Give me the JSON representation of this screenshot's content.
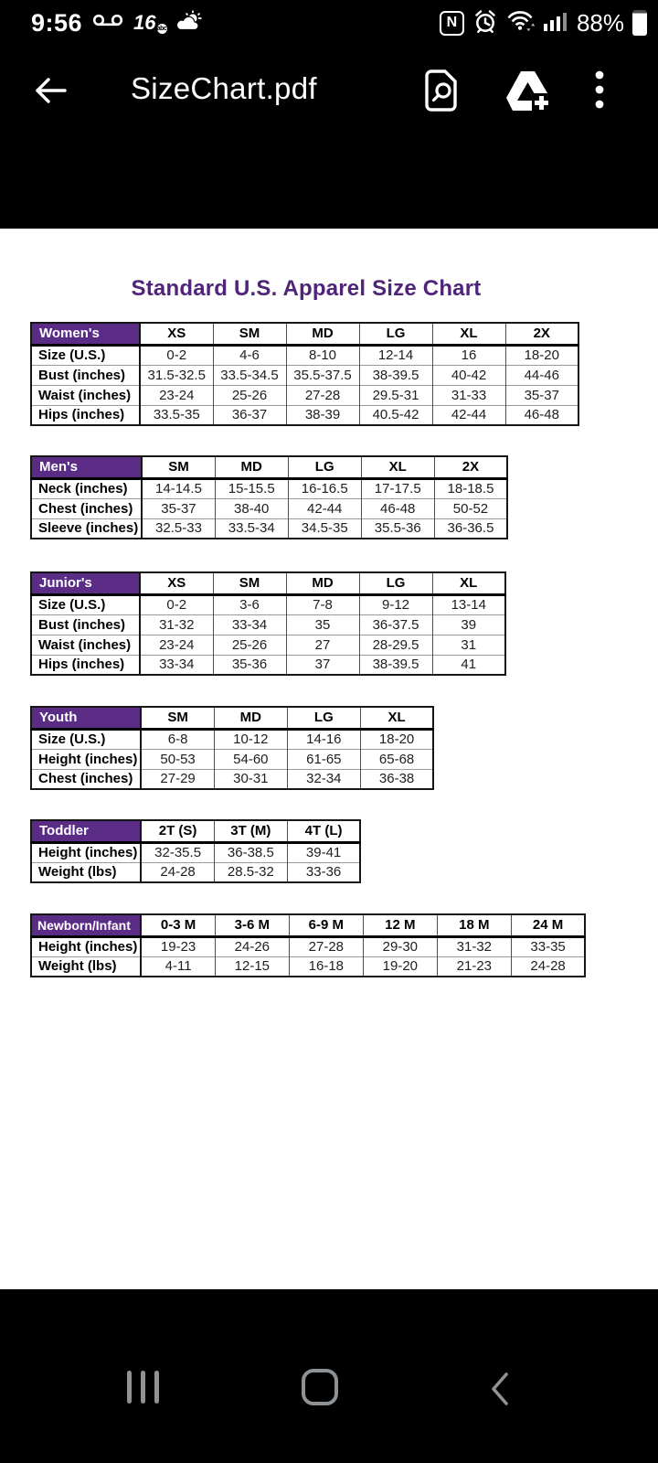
{
  "status_bar": {
    "time": "9:56",
    "battery_percent": "88%",
    "tv_badge": "16",
    "tv_badge_sub": "abc",
    "icons_left": [
      "voicemail-icon",
      "tv-16-abc-icon",
      "weather-sun-cloud-icon"
    ],
    "icons_right": [
      "nfc-icon",
      "alarm-icon",
      "wifi-icon",
      "signal-icon",
      "battery-icon"
    ],
    "nfc_letter": "N"
  },
  "app_bar": {
    "title": "SizeChart.pdf",
    "icons": [
      "back-arrow-icon",
      "find-in-document-icon",
      "add-to-drive-icon",
      "overflow-menu-icon"
    ]
  },
  "document": {
    "title": "Standard U.S. Apparel Size Chart",
    "colors": {
      "title": "#4F2479",
      "header_bg": "#5B2C86",
      "page_bg": "#FFFFFF"
    },
    "tables": [
      {
        "id": "women",
        "name": "Women's",
        "columns": [
          "XS",
          "SM",
          "MD",
          "LG",
          "XL",
          "2X"
        ],
        "rows": [
          {
            "label": "Size (U.S.)",
            "values": [
              "0-2",
              "4-6",
              "8-10",
              "12-14",
              "16",
              "18-20"
            ]
          },
          {
            "label": "Bust (inches)",
            "values": [
              "31.5-32.5",
              "33.5-34.5",
              "35.5-37.5",
              "38-39.5",
              "40-42",
              "44-46"
            ]
          },
          {
            "label": "Waist (inches)",
            "values": [
              "23-24",
              "25-26",
              "27-28",
              "29.5-31",
              "31-33",
              "35-37"
            ]
          },
          {
            "label": "Hips (inches)",
            "values": [
              "33.5-35",
              "36-37",
              "38-39",
              "40.5-42",
              "42-44",
              "46-48"
            ]
          }
        ]
      },
      {
        "id": "men",
        "name": "Men's",
        "columns": [
          "SM",
          "MD",
          "LG",
          "XL",
          "2X"
        ],
        "rows": [
          {
            "label": "Neck (inches)",
            "values": [
              "14-14.5",
              "15-15.5",
              "16-16.5",
              "17-17.5",
              "18-18.5"
            ]
          },
          {
            "label": "Chest (inches)",
            "values": [
              "35-37",
              "38-40",
              "42-44",
              "46-48",
              "50-52"
            ]
          },
          {
            "label": "Sleeve (inches)",
            "values": [
              "32.5-33",
              "33.5-34",
              "34.5-35",
              "35.5-36",
              "36-36.5"
            ]
          }
        ]
      },
      {
        "id": "junior",
        "name": "Junior's",
        "columns": [
          "XS",
          "SM",
          "MD",
          "LG",
          "XL"
        ],
        "rows": [
          {
            "label": "Size (U.S.)",
            "values": [
              "0-2",
              "3-6",
              "7-8",
              "9-12",
              "13-14"
            ]
          },
          {
            "label": "Bust (inches)",
            "values": [
              "31-32",
              "33-34",
              "35",
              "36-37.5",
              "39"
            ]
          },
          {
            "label": "Waist (inches)",
            "values": [
              "23-24",
              "25-26",
              "27",
              "28-29.5",
              "31"
            ]
          },
          {
            "label": "Hips (inches)",
            "values": [
              "33-34",
              "35-36",
              "37",
              "38-39.5",
              "41"
            ]
          }
        ]
      },
      {
        "id": "youth",
        "name": "Youth",
        "columns": [
          "SM",
          "MD",
          "LG",
          "XL"
        ],
        "rows": [
          {
            "label": "Size (U.S.)",
            "values": [
              "6-8",
              "10-12",
              "14-16",
              "18-20"
            ]
          },
          {
            "label": "Height (inches)",
            "values": [
              "50-53",
              "54-60",
              "61-65",
              "65-68"
            ]
          },
          {
            "label": "Chest (inches)",
            "values": [
              "27-29",
              "30-31",
              "32-34",
              "36-38"
            ]
          }
        ]
      },
      {
        "id": "toddler",
        "name": "Toddler",
        "columns": [
          "2T (S)",
          "3T (M)",
          "4T (L)"
        ],
        "rows": [
          {
            "label": "Height (inches)",
            "values": [
              "32-35.5",
              "36-38.5",
              "39-41"
            ]
          },
          {
            "label": "Weight (lbs)",
            "values": [
              "24-28",
              "28.5-32",
              "33-36"
            ]
          }
        ]
      },
      {
        "id": "newborn",
        "name": "Newborn/Infant",
        "columns": [
          "0-3 M",
          "3-6 M",
          "6-9 M",
          "12 M",
          "18 M",
          "24 M"
        ],
        "rows": [
          {
            "label": "Height (inches)",
            "values": [
              "19-23",
              "24-26",
              "27-28",
              "29-30",
              "31-32",
              "33-35"
            ]
          },
          {
            "label": "Weight (lbs)",
            "values": [
              "4-11",
              "12-15",
              "16-18",
              "19-20",
              "21-23",
              "24-28"
            ]
          }
        ]
      }
    ]
  },
  "nav_bar": {
    "icons": [
      "recents-icon",
      "home-icon",
      "back-nav-icon"
    ]
  }
}
